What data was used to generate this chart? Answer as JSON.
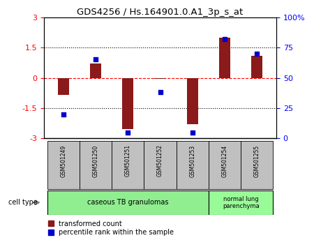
{
  "title": "GDS4256 / Hs.164901.0.A1_3p_s_at",
  "samples": [
    "GSM501249",
    "GSM501250",
    "GSM501251",
    "GSM501252",
    "GSM501253",
    "GSM501254",
    "GSM501255"
  ],
  "transformed_count": [
    -0.85,
    0.7,
    -2.55,
    -0.05,
    -2.3,
    2.0,
    1.1
  ],
  "percentile_rank": [
    20,
    65,
    5,
    38,
    5,
    82,
    70
  ],
  "ylim_left": [
    -3,
    3
  ],
  "ylim_right": [
    0,
    100
  ],
  "yticks_left": [
    -3,
    -1.5,
    0,
    1.5,
    3
  ],
  "yticks_right": [
    0,
    25,
    50,
    75,
    100
  ],
  "ytick_labels_left": [
    "-3",
    "-1.5",
    "0",
    "1.5",
    "3"
  ],
  "ytick_labels_right": [
    "0",
    "25",
    "50",
    "75",
    "100%"
  ],
  "bar_color": "#8B1A1A",
  "dot_color": "#0000CD",
  "group1_indices": [
    0,
    1,
    2,
    3,
    4
  ],
  "group2_indices": [
    5,
    6
  ],
  "group1_label": "caseous TB granulomas",
  "group2_label": "normal lung\nparenchyma",
  "group1_color": "#90EE90",
  "group2_color": "#98FB98",
  "cell_type_label": "cell type",
  "legend_red_label": "transformed count",
  "legend_blue_label": "percentile rank within the sample",
  "bar_width": 0.35,
  "tick_label_bg": "#C0C0C0"
}
